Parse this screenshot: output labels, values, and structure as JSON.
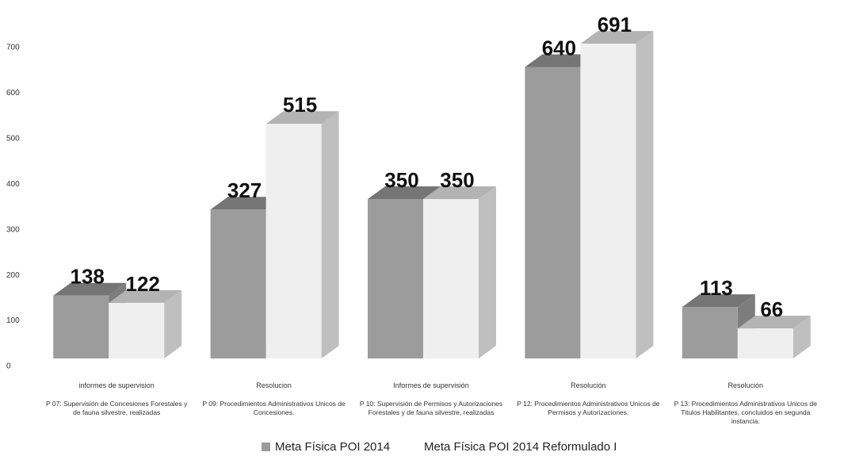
{
  "chart_data": {
    "type": "bar3d",
    "categories": [
      "P 07: Supervisión de Concesiones Forestales y de fauna silvestre, realizadas",
      "P 09: Procedimientos Administrativos Unicos de Concesiones.",
      "P 10: Supervisión de Permisos y Autorizaciones Forestales y de fauna silvestre, realizadas",
      "P 12: Procedimientos Administrativos Unicos de Permisos y Autorizaciones.",
      "P 13: Procedimientos Administrativos Unicos de Titulos Habilitantes, concluidos en segunda instancia."
    ],
    "category_units": [
      "informes de supervision",
      "Resolucion",
      "Informes de supervisión",
      "Resolución",
      "Resolución"
    ],
    "series": [
      {
        "name": "Meta Física POI 2014",
        "color": "#9c9c9c",
        "values": [
          138,
          327,
          350,
          640,
          113
        ]
      },
      {
        "name": "Meta Física POI 2014 Reformulado I",
        "color": "#efefef",
        "values": [
          122,
          515,
          350,
          691,
          66
        ]
      }
    ],
    "ylim": [
      0,
      700
    ],
    "yticks": [
      0,
      100,
      200,
      300,
      400,
      500,
      600,
      700
    ],
    "grid": false
  }
}
